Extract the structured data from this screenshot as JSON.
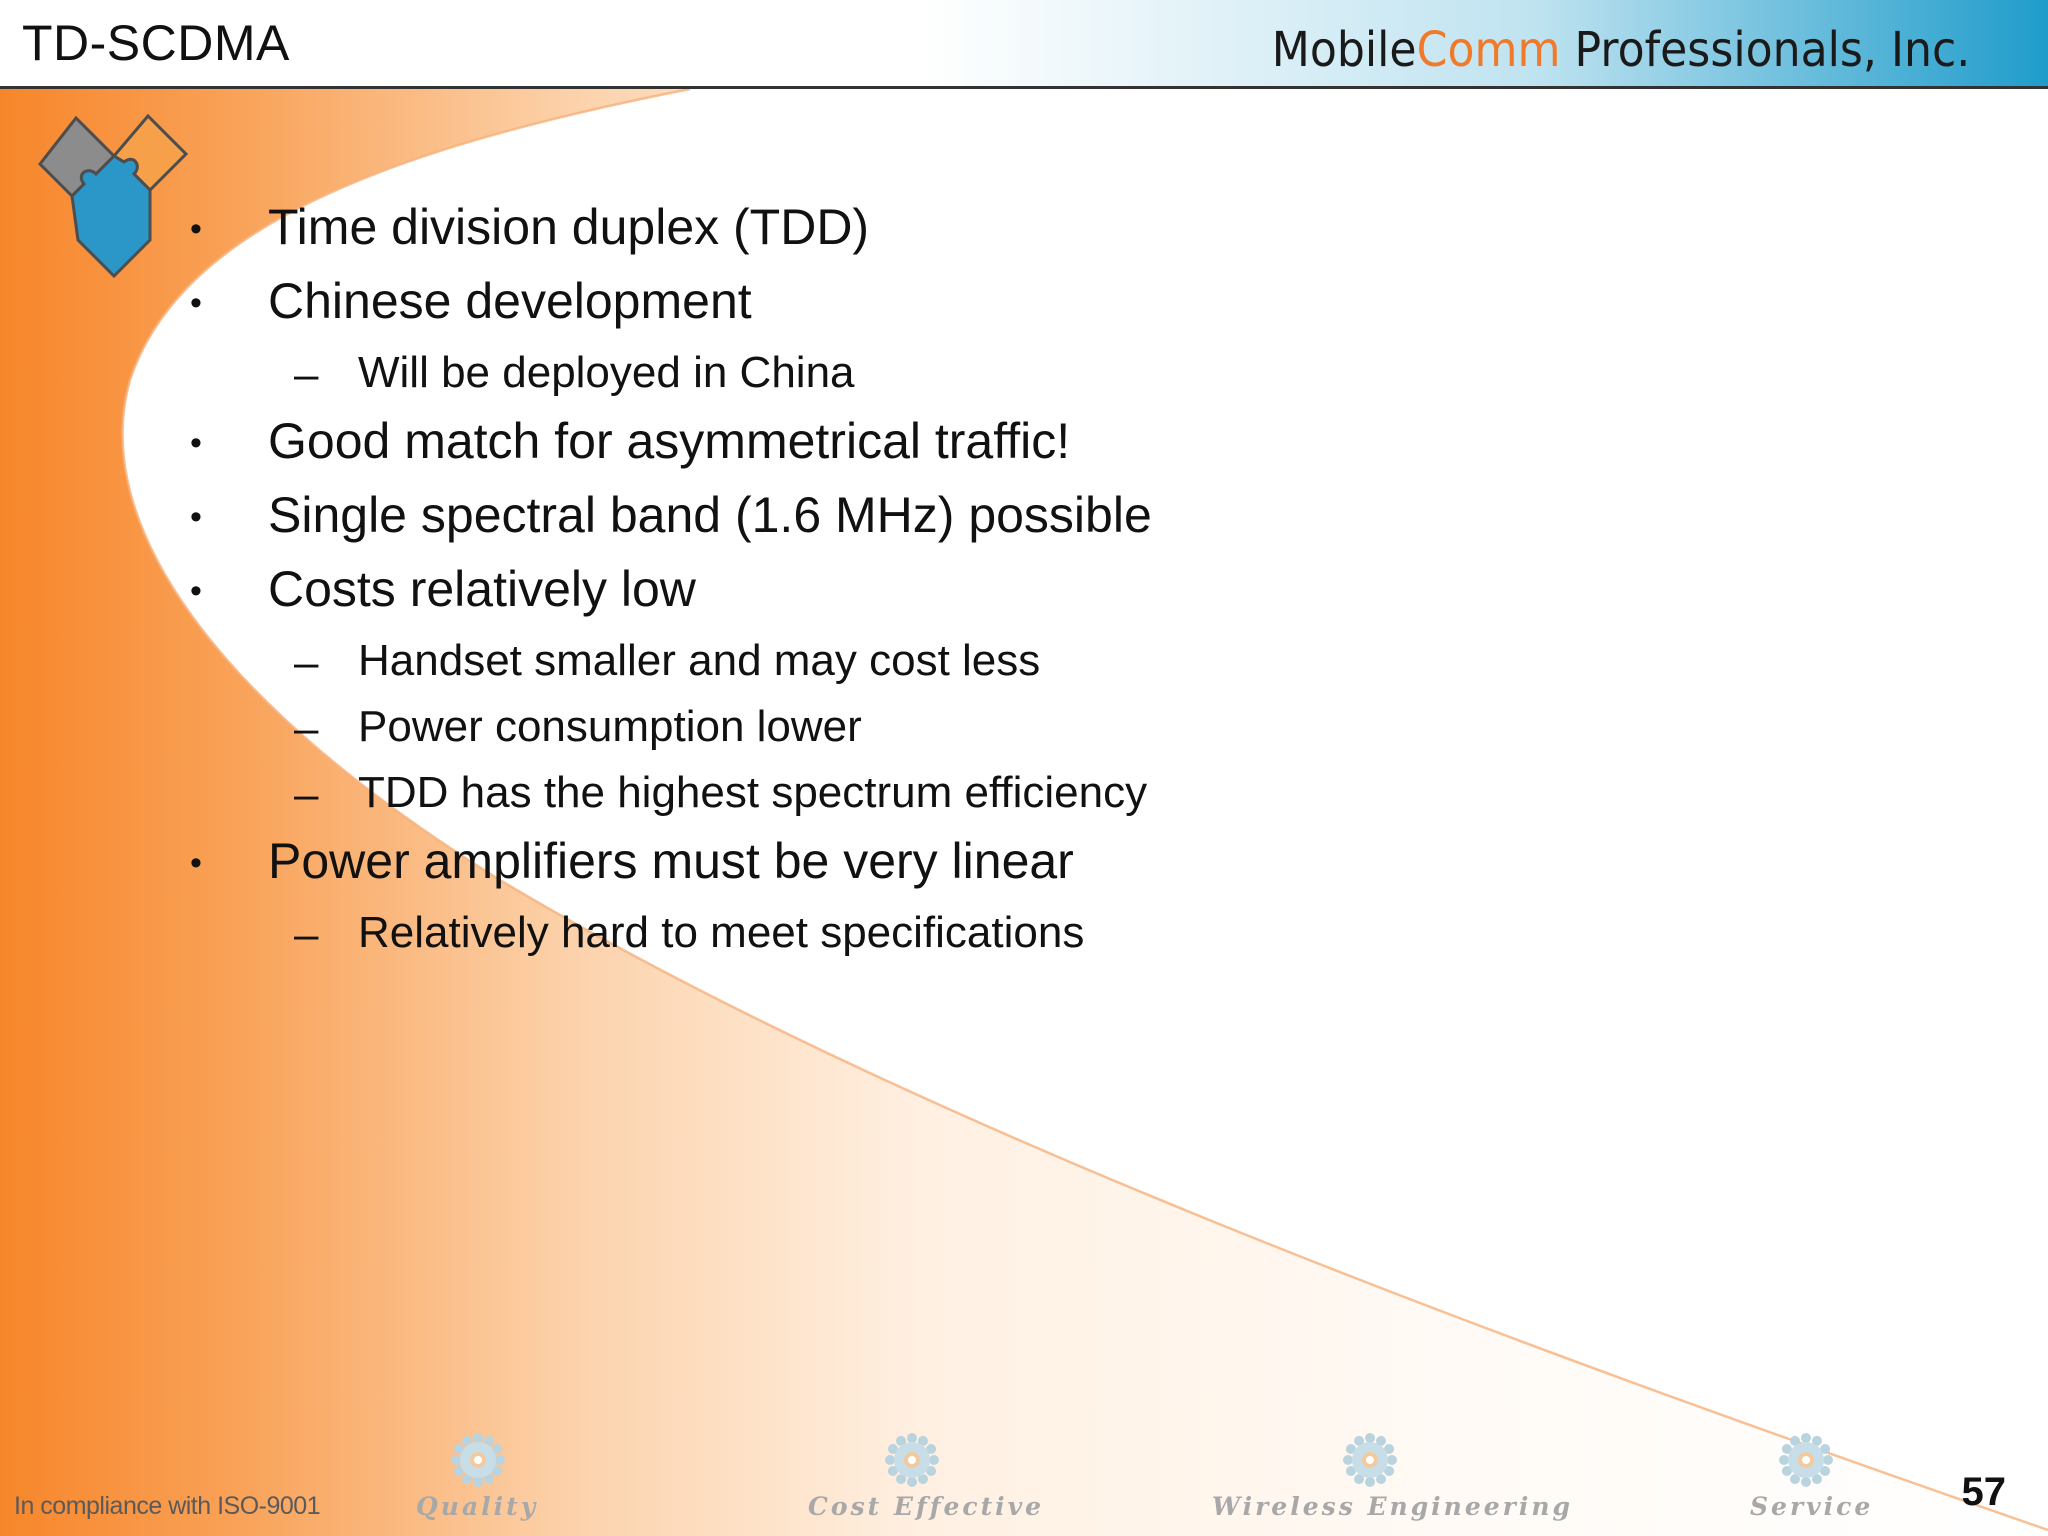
{
  "header": {
    "title": "TD-SCDMA",
    "company_main_1": "Mobile",
    "company_accent": "Comm",
    "company_main_2": " Professionals, Inc."
  },
  "logo": {
    "icon": "puzzle-heart-logo-icon"
  },
  "content": {
    "items": [
      {
        "level": 1,
        "text": "Time division duplex (TDD)"
      },
      {
        "level": 1,
        "text": "Chinese development"
      },
      {
        "level": 2,
        "text": "Will be deployed in China"
      },
      {
        "level": 1,
        "text": "Good match for asymmetrical traffic!"
      },
      {
        "level": 1,
        "text": "Single spectral band (1.6 MHz) possible"
      },
      {
        "level": 1,
        "text": "Costs relatively low"
      },
      {
        "level": 2,
        "text": "Handset smaller and may cost less"
      },
      {
        "level": 2,
        "text": "Power consumption lower"
      },
      {
        "level": 2,
        "text": "TDD has the highest spectrum efficiency"
      },
      {
        "level": 1,
        "text": "Power amplifiers must be very linear"
      },
      {
        "level": 2,
        "text": "Relatively hard to meet specifications"
      }
    ],
    "bullet_glyph": "•",
    "dash_glyph": "–"
  },
  "footer": {
    "compliance": "In compliance with ISO-9001",
    "values": [
      "Quality",
      "Cost Effective",
      "Wireless Engineering",
      "Service"
    ],
    "value_icon": "gear-icon",
    "page_number": "57"
  },
  "colors": {
    "orange": "#f58a2e",
    "header_blue": "#2aa6cf",
    "accent_text": "#f07a2a",
    "logo_gray": "#8a8a8a",
    "logo_orange": "#f7a04a",
    "logo_blue": "#2b96c8"
  }
}
